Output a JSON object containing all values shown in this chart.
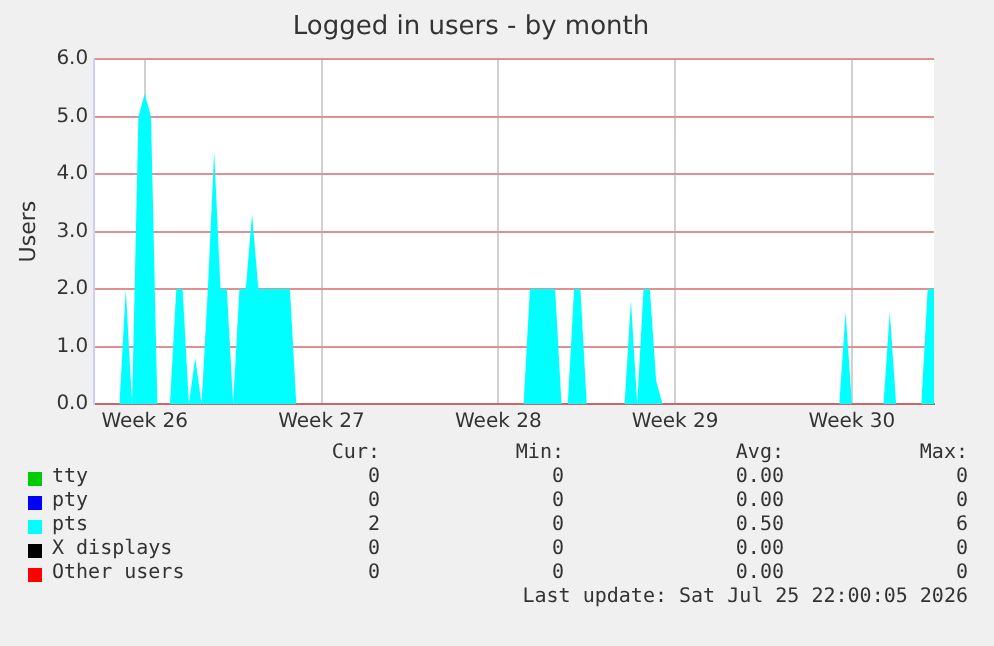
{
  "chart_data": {
    "type": "area",
    "title": "Logged in users - by month",
    "ylabel": "Users",
    "categories": [
      null,
      null,
      null,
      null,
      null,
      null,
      null,
      null,
      "Week 26",
      null,
      null,
      null,
      null,
      null,
      null,
      null,
      null,
      null,
      null,
      null,
      null,
      null,
      null,
      null,
      null,
      null,
      null,
      null,
      null,
      null,
      null,
      null,
      null,
      null,
      null,
      null,
      "Week 27",
      null,
      null,
      null,
      null,
      null,
      null,
      null,
      null,
      null,
      null,
      null,
      null,
      null,
      null,
      null,
      null,
      null,
      null,
      null,
      null,
      null,
      null,
      null,
      null,
      null,
      null,
      null,
      "Week 28",
      null,
      null,
      null,
      null,
      null,
      null,
      null,
      null,
      null,
      null,
      null,
      null,
      null,
      null,
      null,
      null,
      null,
      null,
      null,
      null,
      null,
      null,
      null,
      null,
      null,
      null,
      null,
      "Week 29",
      null,
      null,
      null,
      null,
      null,
      null,
      null,
      null,
      null,
      null,
      null,
      null,
      null,
      null,
      null,
      null,
      null,
      null,
      null,
      null,
      null,
      null,
      null,
      null,
      null,
      null,
      null,
      "Week 30",
      null,
      null,
      null,
      null,
      null,
      null,
      null,
      null,
      null,
      null,
      null,
      null,
      null
    ],
    "ylim": [
      0,
      6
    ],
    "yticks": [
      {
        "value": 0,
        "label": "0.0"
      },
      {
        "value": 1,
        "label": "1.0"
      },
      {
        "value": 2,
        "label": "2.0"
      },
      {
        "value": 3,
        "label": "3.0"
      },
      {
        "value": 4,
        "label": "4.0"
      },
      {
        "value": 5,
        "label": "5.0"
      },
      {
        "value": 6,
        "label": "6.0"
      }
    ],
    "grid": true,
    "legend": "bottom",
    "series": [
      {
        "name": "tty",
        "color": "#00cc00",
        "values": [
          null,
          null,
          null,
          null,
          null,
          null,
          null,
          null,
          null,
          null,
          null,
          null,
          null,
          null,
          null,
          null,
          null,
          null,
          null,
          null,
          null,
          null,
          null,
          null,
          null,
          null,
          null,
          null,
          null,
          null,
          null,
          null,
          null,
          null,
          null,
          null,
          null,
          null,
          null,
          null,
          null,
          null,
          null,
          null,
          null,
          null,
          null,
          null,
          null,
          null,
          null,
          null,
          null,
          null,
          null,
          null,
          null,
          null,
          null,
          null,
          null,
          null,
          null,
          null,
          null,
          null,
          null,
          null,
          null,
          null,
          null,
          null,
          null,
          null,
          null,
          null,
          null,
          null,
          null,
          null,
          null,
          null,
          null,
          null,
          null,
          null,
          null,
          null,
          null,
          null,
          null,
          null,
          null,
          null,
          null,
          null,
          null,
          null,
          null,
          null,
          null,
          null,
          null,
          null,
          null,
          null,
          null,
          null,
          null,
          null,
          null,
          null,
          null,
          null,
          null,
          null,
          null,
          null,
          null,
          null,
          null,
          null,
          null,
          null,
          null,
          null,
          null,
          null,
          null,
          null,
          null,
          null,
          null,
          null
        ]
      },
      {
        "name": "pty",
        "color": "#0000ff",
        "values": [
          null,
          null,
          null,
          null,
          null,
          null,
          null,
          null,
          null,
          null,
          null,
          null,
          null,
          null,
          null,
          null,
          null,
          null,
          null,
          null,
          null,
          null,
          null,
          null,
          null,
          null,
          null,
          null,
          null,
          null,
          null,
          null,
          null,
          null,
          null,
          null,
          null,
          null,
          null,
          null,
          null,
          null,
          null,
          null,
          null,
          null,
          null,
          null,
          null,
          null,
          null,
          null,
          null,
          null,
          null,
          null,
          null,
          null,
          null,
          null,
          null,
          null,
          null,
          null,
          null,
          null,
          null,
          null,
          null,
          null,
          null,
          null,
          null,
          null,
          null,
          null,
          null,
          null,
          null,
          null,
          null,
          null,
          null,
          null,
          null,
          null,
          null,
          null,
          null,
          null,
          null,
          null,
          null,
          null,
          null,
          null,
          null,
          null,
          null,
          null,
          null,
          null,
          null,
          null,
          null,
          null,
          null,
          null,
          null,
          null,
          null,
          null,
          null,
          null,
          null,
          null,
          null,
          null,
          null,
          null,
          null,
          null,
          null,
          null,
          null,
          null,
          null,
          null,
          null,
          null,
          null,
          null,
          null,
          null
        ]
      },
      {
        "name": "pts",
        "color": "#00ffff",
        "values": [
          0,
          0,
          0,
          0,
          0,
          2,
          0,
          5,
          5.4,
          5,
          0,
          0,
          0,
          2,
          2,
          0,
          0.8,
          0,
          2,
          4.4,
          2,
          2,
          0,
          2,
          2,
          3.3,
          2,
          2,
          2,
          2,
          2,
          2,
          0,
          0,
          0,
          0,
          0,
          0,
          0,
          0,
          0,
          0,
          0,
          0,
          0,
          0,
          0,
          0,
          0,
          0,
          0,
          0,
          0,
          0,
          0,
          0,
          0,
          0,
          0,
          0,
          0,
          0,
          0,
          0,
          0,
          0,
          0,
          0,
          0,
          2,
          2,
          2,
          2,
          2,
          0,
          0,
          2,
          2,
          0,
          0,
          0,
          0,
          0,
          0,
          0,
          1.8,
          0,
          2,
          2,
          0.4,
          0,
          0,
          0,
          0,
          0,
          0,
          0,
          0,
          0,
          0,
          0,
          0,
          0,
          0,
          0,
          0,
          0,
          0,
          0,
          0,
          0,
          0,
          0,
          0,
          0,
          0,
          0,
          0,
          0,
          1.6,
          0,
          0,
          0,
          0,
          0,
          0,
          1.6,
          0,
          0,
          0,
          0,
          0,
          2,
          2
        ]
      },
      {
        "name": "X displays",
        "color": "#000000",
        "values": [
          null,
          null,
          null,
          null,
          null,
          null,
          null,
          null,
          null,
          null,
          null,
          null,
          null,
          null,
          null,
          null,
          null,
          null,
          null,
          null,
          null,
          null,
          null,
          null,
          null,
          null,
          null,
          null,
          null,
          null,
          null,
          null,
          null,
          null,
          null,
          null,
          null,
          null,
          null,
          null,
          null,
          null,
          null,
          null,
          null,
          null,
          null,
          null,
          null,
          null,
          null,
          null,
          null,
          null,
          null,
          null,
          null,
          null,
          null,
          null,
          null,
          null,
          null,
          null,
          null,
          null,
          null,
          null,
          null,
          null,
          null,
          null,
          null,
          null,
          null,
          null,
          null,
          null,
          null,
          null,
          null,
          null,
          null,
          null,
          null,
          null,
          null,
          null,
          null,
          null,
          null,
          null,
          null,
          null,
          null,
          null,
          null,
          null,
          null,
          null,
          null,
          null,
          null,
          null,
          null,
          null,
          null,
          null,
          null,
          null,
          null,
          null,
          null,
          null,
          null,
          null,
          null,
          null,
          null,
          null,
          null,
          null,
          null,
          null,
          null,
          null,
          null,
          null,
          null,
          null,
          null,
          null,
          null,
          null
        ]
      },
      {
        "name": "Other users",
        "color": "#ff0000",
        "values": [
          null,
          null,
          null,
          null,
          null,
          null,
          null,
          null,
          null,
          null,
          null,
          null,
          null,
          null,
          null,
          null,
          null,
          null,
          null,
          null,
          null,
          null,
          null,
          null,
          null,
          null,
          null,
          null,
          null,
          null,
          null,
          null,
          null,
          null,
          null,
          null,
          null,
          null,
          null,
          null,
          null,
          null,
          null,
          null,
          null,
          null,
          null,
          null,
          null,
          null,
          null,
          null,
          null,
          null,
          null,
          null,
          null,
          null,
          null,
          null,
          null,
          null,
          null,
          null,
          null,
          null,
          null,
          null,
          null,
          null,
          null,
          null,
          null,
          null,
          null,
          null,
          null,
          null,
          null,
          null,
          null,
          null,
          null,
          null,
          null,
          null,
          null,
          null,
          null,
          null,
          null,
          null,
          null,
          null,
          null,
          null,
          null,
          null,
          null,
          null,
          null,
          null,
          null,
          null,
          null,
          null,
          null,
          null,
          null,
          null,
          null,
          null,
          null,
          null,
          null,
          null,
          null,
          null,
          null,
          null,
          null,
          null,
          null,
          null,
          null,
          null,
          null,
          null,
          null,
          null,
          null,
          null,
          null,
          null
        ]
      }
    ],
    "annotations": [
      "Cur:",
      "Min:",
      "Avg:",
      "Max:",
      "0",
      "0",
      "0.00",
      "0",
      "0",
      "0",
      "0.00",
      "0",
      "2",
      "0",
      "0.50",
      "6",
      "0",
      "0",
      "0.00",
      "0",
      "0",
      "0",
      "0.00",
      "0",
      "Last update: Sat Jul 25 22:00:05 2026"
    ]
  }
}
